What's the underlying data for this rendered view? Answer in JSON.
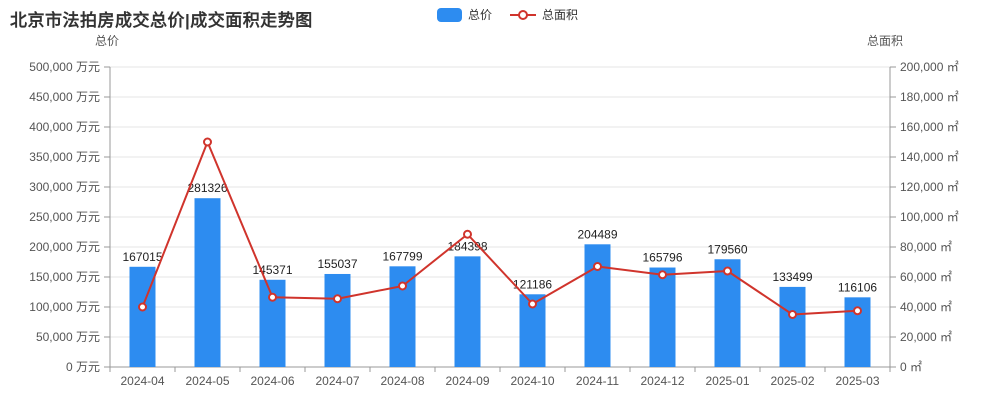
{
  "title": "北京市法拍房成交总价|成交面积走势图",
  "legend": {
    "items": [
      {
        "label": "总价",
        "type": "bar"
      },
      {
        "label": "总面积",
        "type": "line"
      }
    ]
  },
  "colors": {
    "bar": "#2d8cf0",
    "line": "#d0342c",
    "grid": "#e6e6e6",
    "axis_line": "#999999",
    "tick_text": "#555555",
    "value_label_text": "#222222"
  },
  "chart_data": {
    "type": "bar",
    "title": "北京市法拍房成交总价|成交面积走势图",
    "categories": [
      "2024-04",
      "2024-05",
      "2024-06",
      "2024-07",
      "2024-08",
      "2024-09",
      "2024-10",
      "2024-11",
      "2024-12",
      "2025-01",
      "2025-02",
      "2025-03"
    ],
    "series": [
      {
        "name": "总价",
        "type": "bar",
        "axis": "left",
        "unit": "万元",
        "values": [
          167015,
          281326,
          145371,
          155037,
          167799,
          184398,
          121186,
          204489,
          165796,
          179560,
          133499,
          116106
        ],
        "labels_shown": true
      },
      {
        "name": "总面积",
        "type": "line",
        "axis": "right",
        "unit": "㎡",
        "values": [
          40000,
          150000,
          46500,
          45500,
          54000,
          88500,
          42000,
          67000,
          61500,
          64000,
          35000,
          37500
        ],
        "values_estimated_from_gridlines": true,
        "labels_shown": false
      }
    ],
    "left_axis": {
      "name": "总价",
      "min": 0,
      "max": 500000,
      "step": 50000,
      "unit_suffix": " 万元"
    },
    "right_axis": {
      "name": "总面积",
      "min": 0,
      "max": 200000,
      "step": 20000,
      "unit_suffix": " ㎡"
    },
    "grid": true,
    "legend_position": "top-center"
  }
}
